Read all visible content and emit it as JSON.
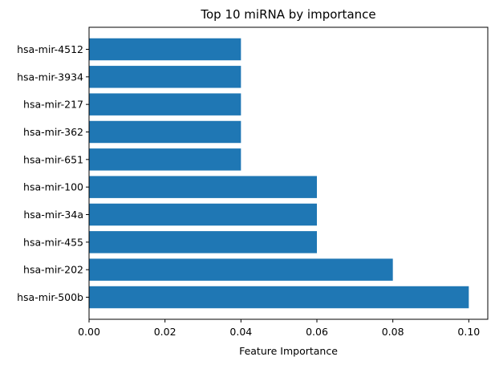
{
  "chart_data": {
    "type": "bar",
    "orientation": "horizontal",
    "title": "Top 10 miRNA by importance",
    "xlabel": "Feature Importance",
    "ylabel": "",
    "categories": [
      "hsa-mir-500b",
      "hsa-mir-202",
      "hsa-mir-455",
      "hsa-mir-34a",
      "hsa-mir-100",
      "hsa-mir-651",
      "hsa-mir-362",
      "hsa-mir-217",
      "hsa-mir-3934",
      "hsa-mir-4512"
    ],
    "values": [
      0.1,
      0.08,
      0.06,
      0.06,
      0.06,
      0.04,
      0.04,
      0.04,
      0.04,
      0.04
    ],
    "xlim": [
      0,
      0.105
    ],
    "xticks": [
      "0.00",
      "0.02",
      "0.04",
      "0.06",
      "0.08",
      "0.10"
    ],
    "grid": false,
    "bar_color": "#1f77b4"
  }
}
